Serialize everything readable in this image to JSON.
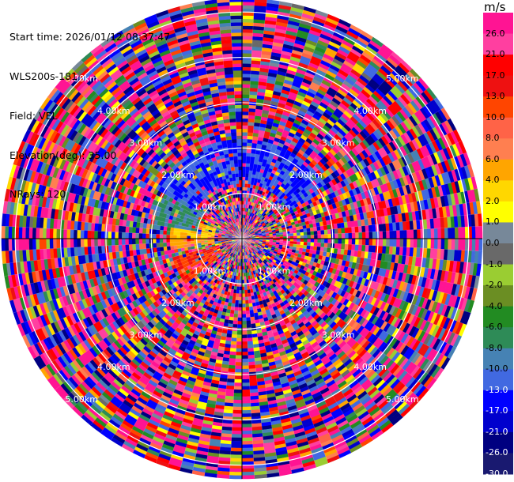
{
  "header": {
    "start_time": "Start time: 2026/01/12 08:37:47",
    "instrument": "WLS200s-181",
    "field": "Field: VEL",
    "elevation": "Elevation(deg): 35.00",
    "nrays": "NRays: 120"
  },
  "colorbar": {
    "unit": "m/s",
    "ticks": [
      "26.0",
      "21.0",
      "17.0",
      "13.0",
      "10.0",
      "8.0",
      "6.0",
      "4.0",
      "2.0",
      "1.0",
      "0.0",
      "-1.0",
      "-2.0",
      "-4.0",
      "-6.0",
      "-8.0",
      "-10.0",
      "-13.0",
      "-17.0",
      "-21.0",
      "-26.0",
      "-30.0"
    ],
    "colors": [
      "#ff1493",
      "#ff3fa0",
      "#ff0000",
      "#ee1111",
      "#ff4500",
      "#ff6347",
      "#ff7f50",
      "#ffa500",
      "#ffd700",
      "#ffff00",
      "#778899",
      "#696969",
      "#9acd32",
      "#6b8e23",
      "#228b22",
      "#2e8b57",
      "#4682b4",
      "#4169e1",
      "#0000ff",
      "#0000cd",
      "#000080",
      "#191970"
    ]
  },
  "chart_data": {
    "type": "ppi",
    "field": "VEL",
    "units": "m/s",
    "elevation_deg": 35.0,
    "n_rays": 120,
    "range_rings_km": [
      1.0,
      2.0,
      3.0,
      4.0,
      5.0
    ],
    "ring_labels": [
      "1.00km",
      "2.00km",
      "3.00km",
      "4.00km",
      "5.00km"
    ],
    "max_range_km": 5.3,
    "value_range": [
      -30,
      30
    ],
    "coherent_sectors": [
      {
        "azimuth_deg": [
          -60,
          60
        ],
        "range_km": [
          1.2,
          2.2
        ],
        "value": -17,
        "note": "north sector"
      },
      {
        "azimuth_deg": [
          -80,
          -55
        ],
        "range_km": [
          1.0,
          2.0
        ],
        "value": -10
      },
      {
        "azimuth_deg": [
          -90,
          -70
        ],
        "range_km": [
          0.6,
          1.6
        ],
        "value": 2
      },
      {
        "azimuth_deg": [
          -100,
          -85
        ],
        "range_km": [
          0.6,
          1.6
        ],
        "value": 4
      },
      {
        "azimuth_deg": [
          -130,
          -105
        ],
        "range_km": [
          0.6,
          1.6
        ],
        "value": 10
      }
    ]
  }
}
